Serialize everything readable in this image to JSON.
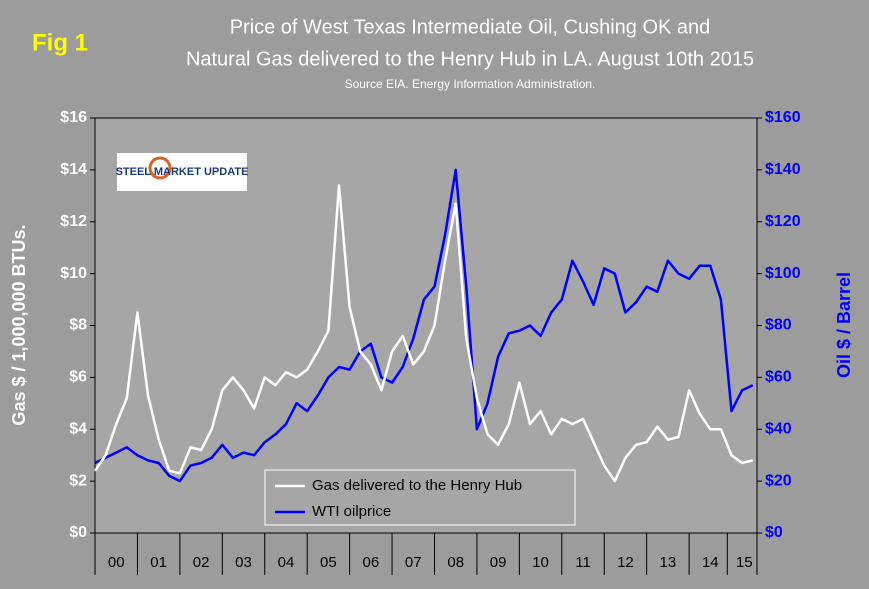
{
  "chart_data": {
    "type": "line",
    "fig_label": "Fig 1",
    "title": "Price of West Texas Intermediate Oil, Cushing OK and",
    "title_line2": "Natural Gas delivered to the Henry Hub in LA. August 10th 2015",
    "subtitle": "Source EIA. Energy Information Administration.",
    "logo_text": "STEEL MARKET UPDATE",
    "y_label": "Gas $ / 1,000,000 BTUs.",
    "y2_label": "Oil $ / Barrel",
    "x": [
      2000,
      2000.25,
      2000.5,
      2000.75,
      2001,
      2001.25,
      2001.5,
      2001.75,
      2002,
      2002.25,
      2002.5,
      2002.75,
      2003,
      2003.25,
      2003.5,
      2003.75,
      2004,
      2004.25,
      2004.5,
      2004.75,
      2005,
      2005.25,
      2005.5,
      2005.75,
      2006,
      2006.25,
      2006.5,
      2006.75,
      2007,
      2007.25,
      2007.5,
      2007.75,
      2008,
      2008.25,
      2008.5,
      2008.75,
      2009,
      2009.25,
      2009.5,
      2009.75,
      2010,
      2010.25,
      2010.5,
      2010.75,
      2011,
      2011.25,
      2011.5,
      2011.75,
      2012,
      2012.25,
      2012.5,
      2012.75,
      2013,
      2013.25,
      2013.5,
      2013.75,
      2014,
      2014.25,
      2014.5,
      2014.75,
      2015,
      2015.25,
      2015.5
    ],
    "xlim": [
      2000,
      2015.6
    ],
    "xticks": [
      {
        "value": 2000.5,
        "label": "00"
      },
      {
        "value": 2001.5,
        "label": "01"
      },
      {
        "value": 2002.5,
        "label": "02"
      },
      {
        "value": 2003.5,
        "label": "03"
      },
      {
        "value": 2004.5,
        "label": "04"
      },
      {
        "value": 2005.5,
        "label": "05"
      },
      {
        "value": 2006.5,
        "label": "06"
      },
      {
        "value": 2007.5,
        "label": "07"
      },
      {
        "value": 2008.5,
        "label": "08"
      },
      {
        "value": 2009.5,
        "label": "09"
      },
      {
        "value": 2010.5,
        "label": "10"
      },
      {
        "value": 2011.5,
        "label": "11"
      },
      {
        "value": 2012.5,
        "label": "12"
      },
      {
        "value": 2013.5,
        "label": "13"
      },
      {
        "value": 2014.5,
        "label": "14"
      },
      {
        "value": 2015.3,
        "label": "15"
      }
    ],
    "ylim": [
      0,
      16
    ],
    "yticks": [
      {
        "value": 0,
        "label": "$0"
      },
      {
        "value": 2,
        "label": "$2"
      },
      {
        "value": 4,
        "label": "$4"
      },
      {
        "value": 6,
        "label": "$6"
      },
      {
        "value": 8,
        "label": "$8"
      },
      {
        "value": 10,
        "label": "$10"
      },
      {
        "value": 12,
        "label": "$12"
      },
      {
        "value": 14,
        "label": "$14"
      },
      {
        "value": 16,
        "label": "$16"
      }
    ],
    "y2lim": [
      0,
      160
    ],
    "y2ticks": [
      {
        "value": 0,
        "label": "$0"
      },
      {
        "value": 20,
        "label": "$20"
      },
      {
        "value": 40,
        "label": "$40"
      },
      {
        "value": 60,
        "label": "$60"
      },
      {
        "value": 80,
        "label": "$80"
      },
      {
        "value": 100,
        "label": "$100"
      },
      {
        "value": 120,
        "label": "$120"
      },
      {
        "value": 140,
        "label": "$140"
      },
      {
        "value": 160,
        "label": "$160"
      }
    ],
    "series": [
      {
        "name": "Gas delivered to the Henry Hub",
        "color": "#ffffff",
        "values": [
          2.4,
          3.0,
          4.2,
          5.2,
          8.5,
          5.3,
          3.6,
          2.4,
          2.3,
          3.3,
          3.2,
          4.0,
          5.5,
          6.0,
          5.5,
          4.8,
          6.0,
          5.7,
          6.2,
          6.0,
          6.3,
          7.0,
          7.8,
          13.4,
          8.7,
          7.0,
          6.5,
          5.5,
          7.0,
          7.6,
          6.5,
          7.0,
          8.0,
          10.5,
          12.7,
          7.5,
          5.2,
          3.8,
          3.4,
          4.2,
          5.8,
          4.2,
          4.7,
          3.8,
          4.4,
          4.2,
          4.4,
          3.5,
          2.6,
          2.0,
          2.9,
          3.4,
          3.5,
          4.1,
          3.6,
          3.7,
          5.5,
          4.6,
          4.0,
          4.0,
          3.0,
          2.7,
          2.8
        ]
      },
      {
        "name": "WTI oilprice",
        "color": "#0000ff",
        "axis": "y2",
        "values": [
          27,
          29,
          31,
          33,
          30,
          28,
          27,
          22,
          20,
          26,
          27,
          29,
          34,
          29,
          31,
          30,
          35,
          38,
          42,
          50,
          47,
          53,
          60,
          64,
          63,
          70,
          73,
          60,
          58,
          64,
          75,
          90,
          95,
          115,
          140,
          95,
          40,
          50,
          68,
          77,
          78,
          80,
          76,
          85,
          90,
          105,
          97,
          88,
          102,
          100,
          85,
          89,
          95,
          93,
          105,
          100,
          98,
          103,
          103,
          90,
          47,
          55,
          57
        ]
      }
    ]
  }
}
